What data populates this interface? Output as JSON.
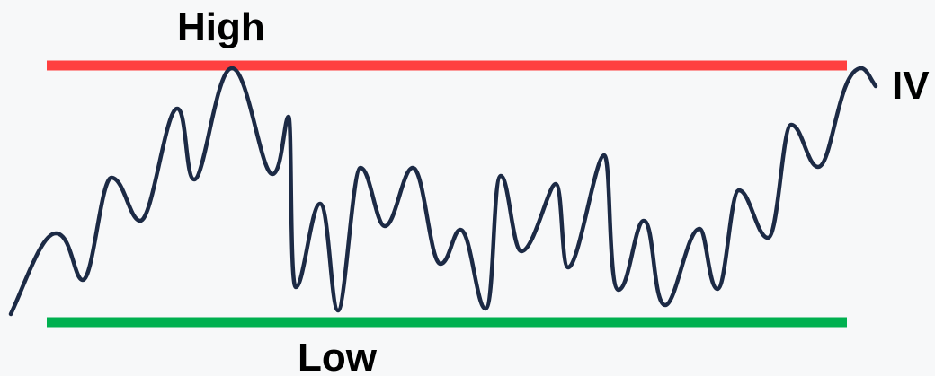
{
  "labels": {
    "high": "High",
    "low": "Low",
    "series": "IV"
  },
  "colors": {
    "high_line": "#ff4040",
    "low_line": "#00b050",
    "series_line": "#1c2a45",
    "background": "#f7f8f9"
  }
}
